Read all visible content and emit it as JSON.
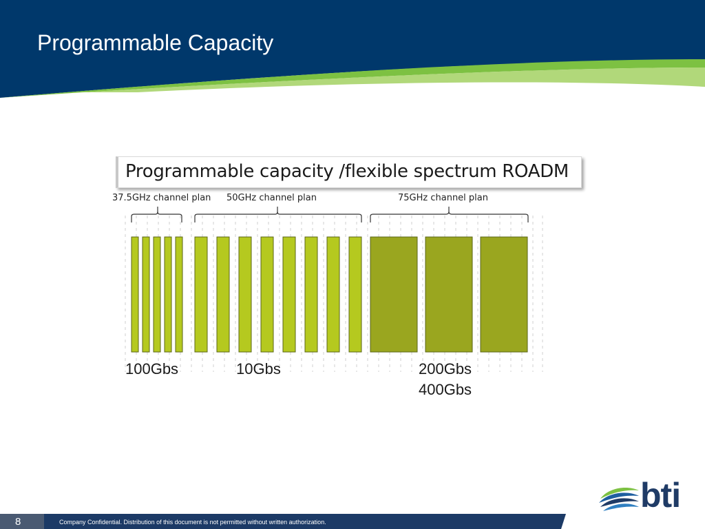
{
  "slide": {
    "title": "Programmable Capacity",
    "page_number": "8",
    "footer_text": "Company Confidential. Distribution of this document is not permitted without written authorization."
  },
  "diagram": {
    "callout": "Programmable capacity /flexible spectrum ROADM",
    "channel_plans": [
      {
        "label": "37.5GHz channel plan",
        "slots": 5
      },
      {
        "label": "50GHz channel plan",
        "slots": 8
      },
      {
        "label": "75GHz channel plan",
        "slots": 3
      }
    ],
    "rate_labels": {
      "plan_37_5": "100Gbs",
      "plan_50": "10Gbs",
      "plan_75_line1": "200Gbs",
      "plan_75_line2": "400Gbs"
    }
  },
  "logo": {
    "text": "bti"
  },
  "colors": {
    "header_blue": "#00386b",
    "accent_green": "#7dc142",
    "bar_light": "#b5c91f",
    "bar_dark": "#9aa61f",
    "footer_blue": "#1c3a66"
  }
}
